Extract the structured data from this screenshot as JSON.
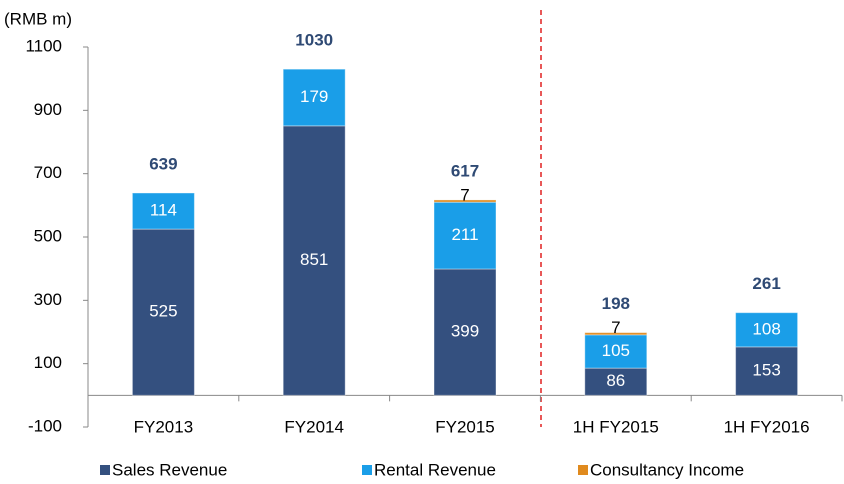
{
  "chart_data": {
    "type": "stacked_bar",
    "y_axis_label": "(RMB m)",
    "categories": [
      "FY2013",
      "FY2014",
      "FY2015",
      "1H FY2015",
      "1H FY2016"
    ],
    "series": [
      {
        "name": "Sales Revenue",
        "color": "#34507f",
        "values": [
          525,
          851,
          399,
          86,
          153
        ]
      },
      {
        "name": "Rental Revenue",
        "color": "#1a9ee8",
        "values": [
          114,
          179,
          211,
          105,
          108
        ]
      },
      {
        "name": "Consultancy Income",
        "color": "#e08a1e",
        "values": [
          null,
          null,
          7,
          7,
          null
        ]
      }
    ],
    "totals": [
      639,
      1030,
      617,
      198,
      261
    ],
    "ylim": [
      -100,
      1100
    ],
    "yticks": [
      -100,
      100,
      300,
      500,
      700,
      900,
      1100
    ],
    "legend": "bottom"
  }
}
